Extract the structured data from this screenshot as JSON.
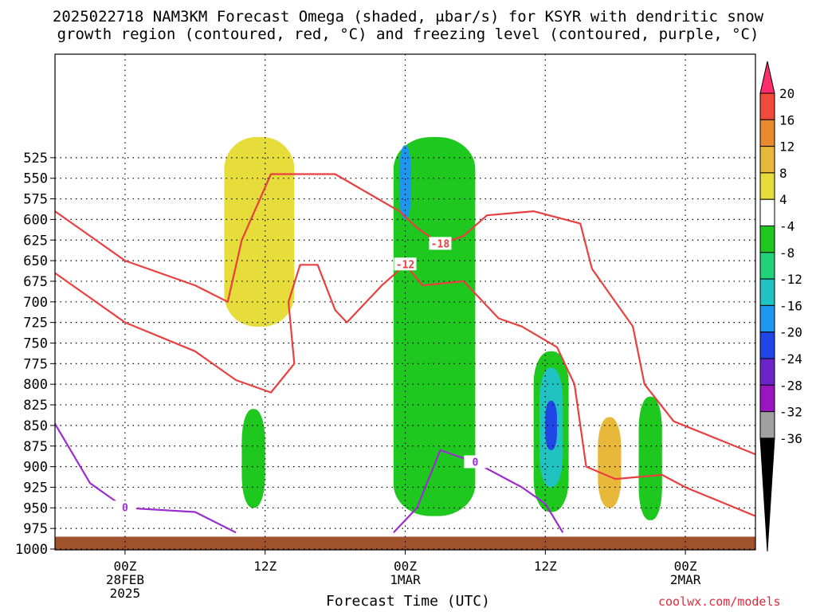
{
  "title_line1": "2025022718 NAM3KM Forecast Omega (shaded, μbar/s) for KSYR with dendritic snow",
  "title_line2": "growth region (contoured, red, °C) and freezing level (contoured, purple, °C)",
  "credit": "coolwx.com/models",
  "chart_data": {
    "type": "heatmap",
    "xlabel": "Forecast Time (UTC)",
    "ylabel": "",
    "x_ticks": [
      {
        "t": 6,
        "lines": [
          "00Z",
          "28FEB",
          "2025"
        ]
      },
      {
        "t": 18,
        "lines": [
          "12Z"
        ]
      },
      {
        "t": 30,
        "lines": [
          "00Z",
          "1MAR"
        ]
      },
      {
        "t": 42,
        "lines": [
          "12Z"
        ]
      },
      {
        "t": 54,
        "lines": [
          "00Z",
          "2MAR"
        ]
      }
    ],
    "xlim": [
      0,
      60
    ],
    "y_pressure_ticks": [
      525,
      550,
      575,
      600,
      625,
      650,
      675,
      700,
      725,
      750,
      775,
      800,
      825,
      850,
      875,
      900,
      925,
      950,
      975,
      1000
    ],
    "ylim": [
      500,
      1000
    ],
    "colorbar": {
      "labels": [
        "20",
        "16",
        "12",
        "8",
        "4",
        "-4",
        "-8",
        "-12",
        "-16",
        "-20",
        "-24",
        "-28",
        "-32",
        "-36"
      ],
      "colors": [
        "#ff2d6c",
        "#f04a3a",
        "#ea8a2e",
        "#e8b83a",
        "#e6dc3a",
        "#ffffff",
        "#1ec81e",
        "#20d37a",
        "#20c2c2",
        "#1e96f0",
        "#2046e6",
        "#6a24c8",
        "#9a14c0",
        "#a0a0a0",
        "#000000"
      ]
    },
    "omega_regions": [
      {
        "level": "-4",
        "color": "#1ec81e",
        "t_start": 29,
        "t_end": 36,
        "p_top": 500,
        "p_bottom": 960
      },
      {
        "level": "-4",
        "color": "#1ec81e",
        "t_start": 41,
        "t_end": 44,
        "p_top": 760,
        "p_bottom": 955
      },
      {
        "level": "-4",
        "color": "#1ec81e",
        "t_start": 50,
        "t_end": 52,
        "p_top": 815,
        "p_bottom": 965
      },
      {
        "level": "-4",
        "color": "#1ec81e",
        "t_start": 16,
        "t_end": 18,
        "p_top": 830,
        "p_bottom": 950
      },
      {
        "level": "-12",
        "color": "#20c2c2",
        "t_start": 41.5,
        "t_end": 43.5,
        "p_top": 780,
        "p_bottom": 925
      },
      {
        "level": "-20",
        "color": "#2046e6",
        "t_start": 42,
        "t_end": 43,
        "p_top": 820,
        "p_bottom": 880
      },
      {
        "level": "-16",
        "color": "#1e96f0",
        "t_start": 29.5,
        "t_end": 30.5,
        "p_top": 510,
        "p_bottom": 600
      },
      {
        "level": "4",
        "color": "#e6dc3a",
        "t_start": 14.5,
        "t_end": 20.5,
        "p_top": 500,
        "p_bottom": 730
      },
      {
        "level": "8",
        "color": "#e8b83a",
        "t_start": 46.5,
        "t_end": 48.5,
        "p_top": 840,
        "p_bottom": 950
      }
    ],
    "dgz_contours": [
      {
        "label": "-18",
        "points": [
          [
            0,
            590
          ],
          [
            6,
            650
          ],
          [
            12,
            680
          ],
          [
            14.8,
            700
          ],
          [
            16,
            625
          ],
          [
            18.5,
            545
          ],
          [
            24,
            545
          ],
          [
            29.5,
            590
          ],
          [
            31,
            610
          ],
          [
            33,
            630
          ],
          [
            35,
            620
          ],
          [
            37,
            595
          ],
          [
            41,
            590
          ],
          [
            45,
            605
          ],
          [
            46,
            660
          ],
          [
            49.5,
            730
          ],
          [
            50.5,
            800
          ],
          [
            53,
            845
          ],
          [
            60,
            885
          ]
        ]
      },
      {
        "label": "-12",
        "points": [
          [
            0,
            665
          ],
          [
            6,
            725
          ],
          [
            12,
            760
          ],
          [
            15.5,
            795
          ],
          [
            18.5,
            810
          ],
          [
            20.5,
            775
          ],
          [
            20,
            700
          ],
          [
            21,
            655
          ],
          [
            22.5,
            655
          ],
          [
            24,
            710
          ],
          [
            25,
            725
          ],
          [
            28,
            680
          ],
          [
            30,
            655
          ],
          [
            31.5,
            680
          ],
          [
            35,
            675
          ],
          [
            38,
            720
          ],
          [
            40,
            730
          ],
          [
            43,
            755
          ],
          [
            44.5,
            800
          ],
          [
            45.5,
            900
          ],
          [
            48,
            915
          ],
          [
            52,
            910
          ],
          [
            54,
            925
          ],
          [
            60,
            960
          ]
        ]
      }
    ],
    "freezing_contours": [
      {
        "label": "0",
        "points": [
          [
            0,
            848
          ],
          [
            3,
            920
          ],
          [
            6,
            950
          ],
          [
            12,
            955
          ],
          [
            15.5,
            980
          ]
        ]
      },
      {
        "label": "0",
        "points": [
          [
            29,
            980
          ],
          [
            31,
            950
          ],
          [
            33,
            880
          ],
          [
            36,
            895
          ],
          [
            40,
            925
          ],
          [
            42,
            945
          ],
          [
            43.5,
            980
          ]
        ]
      }
    ],
    "terrain_surface_pressure": 985
  }
}
